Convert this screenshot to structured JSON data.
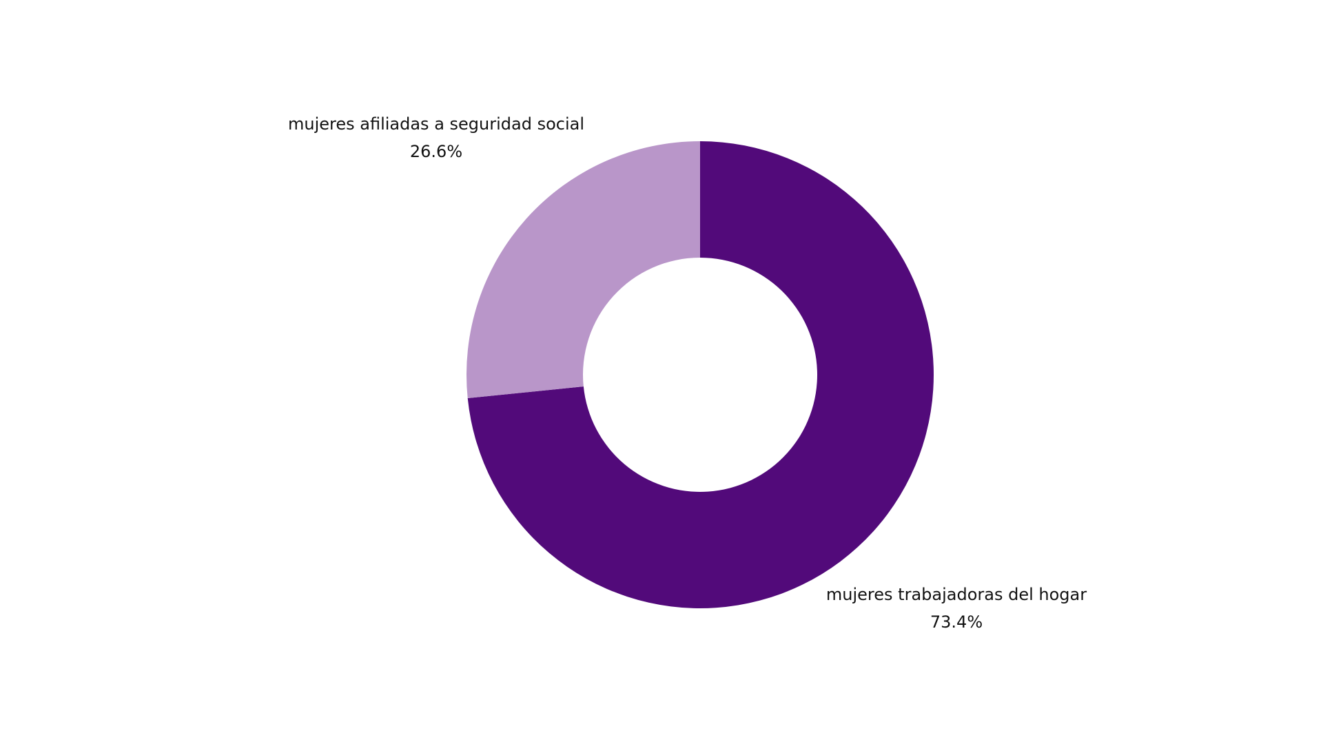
{
  "chart_data": {
    "type": "pie",
    "donut": true,
    "title": "",
    "slices": [
      {
        "label": "mujeres trabajadoras del hogar",
        "value": 73.4,
        "value_label": "73.4%",
        "color": "#520a7a"
      },
      {
        "label": "mujeres afiliadas a seguridad social",
        "value": 26.6,
        "value_label": "26.6%",
        "color": "#b996c9"
      }
    ],
    "legend": "none"
  }
}
